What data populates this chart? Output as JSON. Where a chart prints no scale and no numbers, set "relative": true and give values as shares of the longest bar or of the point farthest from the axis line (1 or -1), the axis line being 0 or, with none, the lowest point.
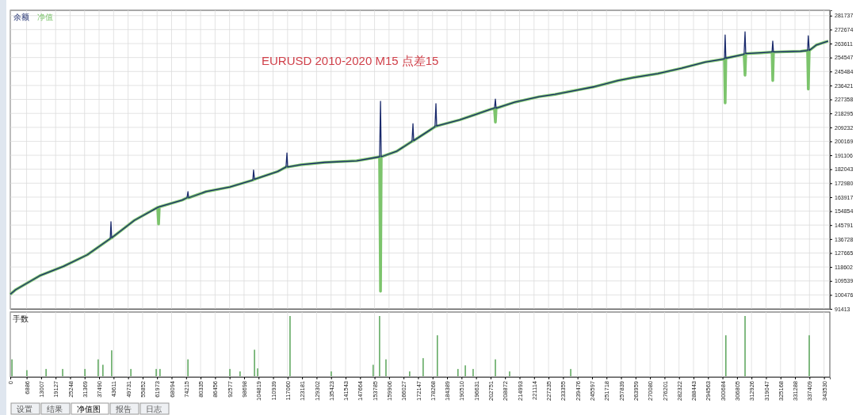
{
  "chart_data": [
    {
      "type": "line",
      "title": "EURUSD 2010-2020 M15 点差15",
      "legend": "top left",
      "grid": true,
      "tick_labels": "y",
      "line_style": "solid",
      "marker": "none",
      "xlim": [
        0,
        346000
      ],
      "ylim": [
        91413,
        285200
      ],
      "xticks": [
        0,
        6886,
        13007,
        19127,
        25248,
        31369,
        37490,
        43611,
        49731,
        55852,
        61973,
        68094,
        74215,
        80335,
        86456,
        92577,
        98698,
        104819,
        110939,
        117060,
        123181,
        129302,
        135423,
        141543,
        147664,
        153785,
        159906,
        166027,
        172147,
        178268,
        184389,
        190510,
        196631,
        202751,
        208872,
        214993,
        221114,
        227235,
        233355,
        239476,
        245597,
        251718,
        257839,
        263959,
        270080,
        276201,
        282322,
        288443,
        294563,
        300684,
        306805,
        312926,
        319047,
        325168,
        331288,
        337409,
        343530
      ],
      "yticks": [
        91413,
        100476,
        109539,
        118602,
        127665,
        136728,
        145791,
        154854,
        163917,
        172980,
        182043,
        191106,
        200169,
        209232,
        218295,
        227358,
        236421,
        245484,
        254547,
        263611,
        272674,
        281737
      ],
      "series": [
        {
          "name": "净值",
          "color": "#7cc46c",
          "x": [
            0,
            2300,
            12400,
            22400,
            32500,
            42200,
            42800,
            52500,
            62200,
            62600,
            62900,
            72600,
            74600,
            75300,
            82600,
            92700,
            102400,
            103100,
            112800,
            116400,
            117100,
            122800,
            132800,
            146200,
            155900,
            156300,
            156600,
            163000,
            169600,
            170300,
            176300,
            179300,
            180000,
            189700,
            196400,
            203100,
            204400,
            204800,
            205100,
            213100,
            223200,
            229900,
            236600,
            246600,
            256600,
            263300,
            273400,
            283400,
            293400,
            301500,
            301800,
            302100,
            309800,
            310200,
            310500,
            316900,
            321600,
            321900,
            322200,
            333600,
            336600,
            336900,
            337300,
            340300,
            345300
          ],
          "values": [
            100900,
            103900,
            112900,
            119000,
            126500,
            137000,
            137500,
            149000,
            157300,
            146500,
            157600,
            162000,
            163500,
            163500,
            167500,
            170500,
            175000,
            175500,
            180500,
            183500,
            183500,
            185000,
            186500,
            187500,
            190100,
            102900,
            190100,
            193600,
            200100,
            200600,
            206600,
            209600,
            210100,
            214100,
            217600,
            221100,
            221600,
            212600,
            221600,
            225600,
            229100,
            230600,
            232600,
            235600,
            239600,
            241600,
            244100,
            247600,
            251600,
            253600,
            225100,
            254100,
            256600,
            243100,
            257100,
            257600,
            258100,
            239600,
            258100,
            258600,
            259100,
            234100,
            259100,
            262700,
            265200
          ]
        },
        {
          "name": "余额",
          "color": "#1a2a6c",
          "x": [
            0,
            2300,
            12400,
            22400,
            32500,
            42200,
            42500,
            42800,
            52500,
            62600,
            72600,
            74600,
            75000,
            75300,
            82600,
            92700,
            102400,
            102700,
            103100,
            112800,
            116400,
            116800,
            117100,
            122800,
            132800,
            146200,
            155900,
            156300,
            156600,
            163000,
            169600,
            170000,
            170300,
            176300,
            179300,
            179700,
            180000,
            189700,
            196400,
            203100,
            204400,
            204800,
            205100,
            213100,
            223200,
            229900,
            236600,
            246600,
            256600,
            263300,
            273400,
            283400,
            293400,
            301500,
            301800,
            302100,
            309800,
            310200,
            310500,
            316900,
            321600,
            321900,
            322200,
            333600,
            336600,
            336900,
            337300,
            340300,
            345300
          ],
          "values": [
            100900,
            103900,
            112900,
            119000,
            126500,
            137000,
            148000,
            137500,
            149000,
            157500,
            162000,
            163500,
            167500,
            163500,
            167500,
            170500,
            175000,
            181500,
            175500,
            180500,
            183500,
            192600,
            183500,
            185000,
            186500,
            187500,
            190100,
            226100,
            190100,
            193600,
            200100,
            211600,
            200600,
            206600,
            209600,
            224600,
            210100,
            214100,
            217600,
            221100,
            221600,
            227600,
            221600,
            225600,
            229100,
            230600,
            232600,
            235600,
            239600,
            241600,
            244100,
            247600,
            251600,
            253600,
            269200,
            254100,
            256600,
            271200,
            257100,
            257600,
            258100,
            265200,
            258100,
            258600,
            259100,
            268700,
            259100,
            262700,
            265200
          ]
        }
      ]
    },
    {
      "type": "bar",
      "title": "手数",
      "relative": true,
      "color": "#5aa55a",
      "grid": "x",
      "tick_labels": "x",
      "xlim": [
        0,
        346000
      ],
      "xticks": [
        0,
        6886,
        13007,
        19127,
        25248,
        31369,
        37490,
        43611,
        49731,
        55852,
        61973,
        68094,
        74215,
        80335,
        86456,
        92577,
        98698,
        104819,
        110939,
        117060,
        123181,
        129302,
        135423,
        141543,
        147664,
        153785,
        159906,
        166027,
        172147,
        178268,
        184389,
        190510,
        196631,
        202751,
        208872,
        214993,
        221114,
        227235,
        233355,
        239476,
        245597,
        251718,
        257839,
        263959,
        270080,
        276201,
        282322,
        288443,
        294563,
        300684,
        306805,
        312926,
        319047,
        325168,
        331288,
        337409,
        343530
      ],
      "x": [
        700,
        7000,
        15100,
        22100,
        31500,
        37100,
        39100,
        42800,
        50900,
        61600,
        63200,
        75000,
        92700,
        97000,
        103100,
        104400,
        118100,
        135500,
        153200,
        155900,
        158600,
        168600,
        174300,
        180300,
        189000,
        192100,
        195400,
        204800,
        210800,
        236600,
        302100,
        310200,
        337300
      ],
      "values": [
        0.28,
        0.1,
        0.12,
        0.12,
        0.12,
        0.28,
        0.19,
        0.43,
        0.12,
        0.12,
        0.12,
        0.28,
        0.12,
        0.08,
        0.44,
        0.13,
        1,
        0.08,
        0.19,
        1,
        0.28,
        0.08,
        0.3,
        0.68,
        0.12,
        0.18,
        0.12,
        0.28,
        0.08,
        0.12,
        0.68,
        1,
        0.68
      ],
      "annotations": [
        "设置",
        "结果",
        "净值图",
        "报告",
        "日志"
      ]
    }
  ]
}
